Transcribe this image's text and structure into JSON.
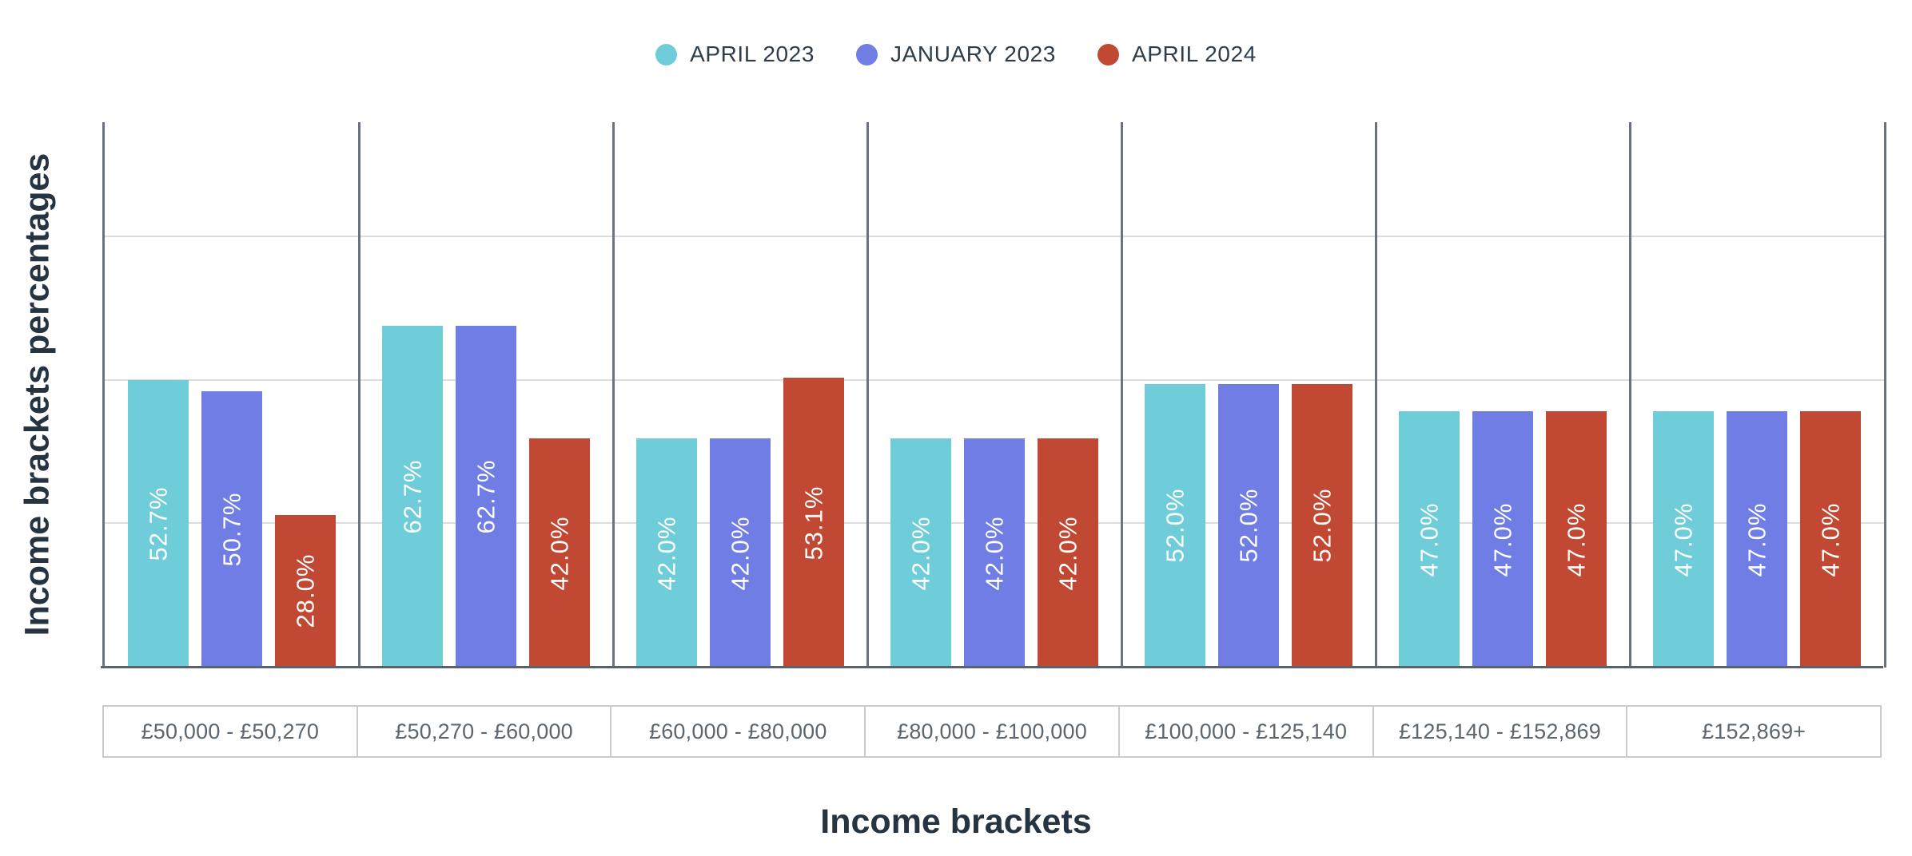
{
  "chart_data": {
    "type": "bar",
    "title": "",
    "xlabel": "Income brackets",
    "ylabel": "Income brackets percentages",
    "categories": [
      "£50,000 - £50,270",
      "£50,270 - £60,000",
      "£60,000 - £80,000",
      "£80,000 - £100,000",
      "£100,000 - £125,140",
      "£125,140 - £152,869",
      "£152,869+"
    ],
    "series": [
      {
        "name": "APRIL 2023",
        "color": "#6FCDDA",
        "values": [
          52.7,
          62.7,
          42.0,
          42.0,
          52.0,
          47.0,
          47.0
        ],
        "value_labels": [
          "52.7%",
          "62.7%",
          "42.0%",
          "42.0%",
          "52.0%",
          "47.0%",
          "47.0%"
        ]
      },
      {
        "name": "JANUARY 2023",
        "color": "#6F7DE4",
        "values": [
          50.7,
          62.7,
          42.0,
          42.0,
          52.0,
          47.0,
          47.0
        ],
        "value_labels": [
          "50.7%",
          "62.7%",
          "42.0%",
          "42.0%",
          "52.0%",
          "47.0%",
          "47.0%"
        ]
      },
      {
        "name": "APRIL 2024",
        "color": "#C14832",
        "values": [
          28.0,
          42.0,
          53.1,
          42.0,
          52.0,
          47.0,
          47.0
        ],
        "value_labels": [
          "28.0%",
          "42.0%",
          "53.1%",
          "42.0%",
          "52.0%",
          "47.0%",
          "47.0%"
        ]
      }
    ],
    "ylim": [
      0,
      100
    ],
    "gridline_values": [
      26.3,
      52.6,
      78.9
    ],
    "grid": "horizontal-unlabeled",
    "legend_position": "top",
    "value_label_style": "rotated-90-white-centered"
  },
  "colors": {
    "axis_title_text": "#263340",
    "legend_text": "#2E3C4A",
    "category_text": "#5C6670",
    "gridline": "#DBDDDF",
    "group_separator": "#6B7380",
    "baseline": "#5A626C",
    "category_box_border": "#C9CCCF",
    "background": "#FFFFFF"
  }
}
